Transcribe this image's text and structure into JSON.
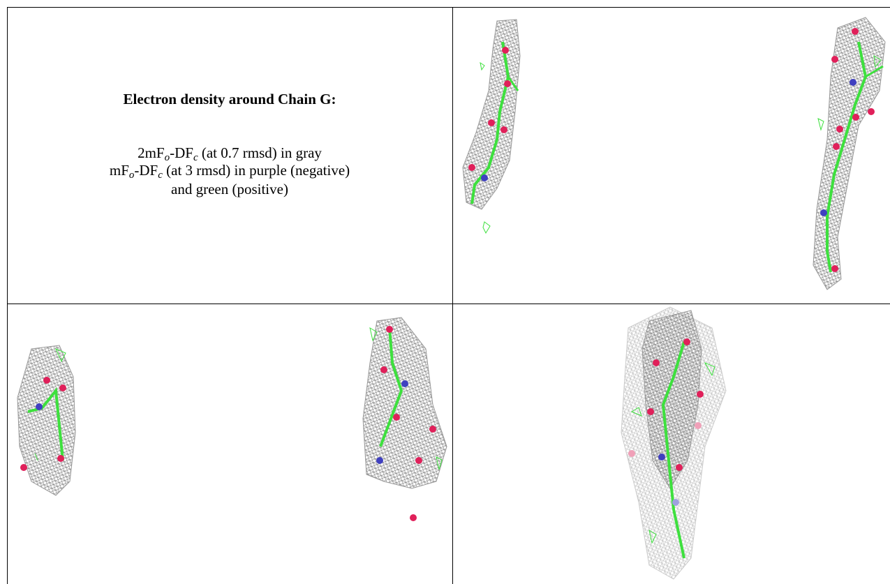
{
  "table": {
    "title": "Electron density around Chain G:",
    "lines": [
      [
        "2mF",
        "o",
        "-DF",
        "c",
        " (at 0.7 rmsd) in gray"
      ],
      [
        "mF",
        "o",
        "-DF",
        "c",
        " (at 3 rmsd) in purple (negative)"
      ],
      [
        "and green (positive)"
      ]
    ]
  }
}
